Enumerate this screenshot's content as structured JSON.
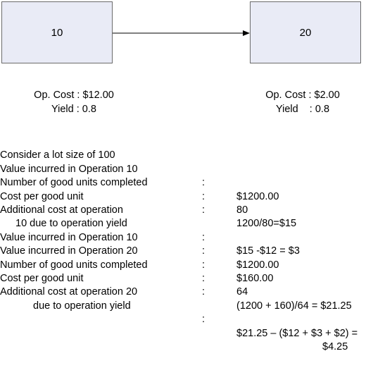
{
  "diagram": {
    "op1": {
      "label": "10",
      "cost": "Op. Cost : $12.00",
      "yield": "Yield : 0.8"
    },
    "op2": {
      "label": "20",
      "cost": "Op. Cost : $2.00",
      "yield": "Yield    : 0.8"
    }
  },
  "calculation": {
    "intro": "Consider a lot size of 100",
    "rows": [
      {
        "label": "Value incurred in Operation 10",
        "sep": ":",
        "value": "$1200.00"
      },
      {
        "label": "Number of good units completed",
        "sep": ":",
        "value": "80"
      },
      {
        "label": "Cost per good unit",
        "sep": ":",
        "value": "1200/80=$15"
      },
      {
        "label": "Additional cost at operation",
        "sep": "",
        "value": ""
      },
      {
        "label": "10 due to operation yield",
        "sep": ":",
        "value": "$15 -$12 = $3"
      },
      {
        "label": "Value incurred in Operation 10",
        "sep": ":",
        "value": "$1200.00"
      },
      {
        "label": "Value incurred in Operation 20",
        "sep": ":",
        "value": "$160.00"
      },
      {
        "label": "Number of good units completed",
        "sep": ":",
        "value": "64"
      },
      {
        "label": "Cost per good unit",
        "sep": ":",
        "value": "(1200 + 160)/64 = $21.25"
      },
      {
        "label": "Additional cost at operation 20",
        "sep": "",
        "value": ""
      },
      {
        "label": "due to operation yield",
        "sep": ":",
        "value": "$21.25 – ($12 + $3 + $2) ="
      },
      {
        "label": "",
        "sep": "",
        "value": "$4.25"
      }
    ]
  }
}
